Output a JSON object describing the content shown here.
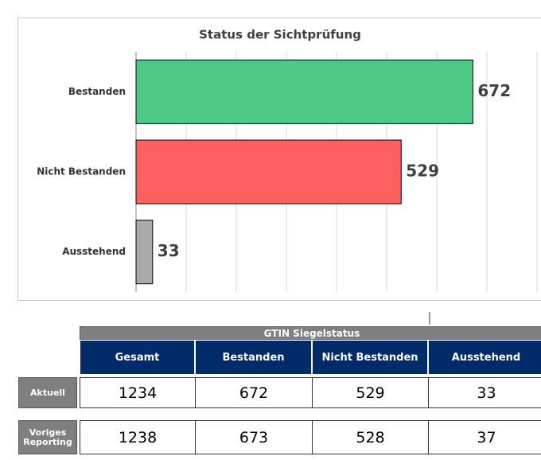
{
  "chart_data": {
    "type": "hbar",
    "title": "Status der Sichtprüfung",
    "categories": [
      "Bestanden",
      "Nicht Bestanden",
      "Ausstehend"
    ],
    "values": [
      672,
      529,
      33
    ],
    "colors": [
      "#4ec985",
      "#fe5f5f",
      "#aaaaaa"
    ],
    "xlim": [
      0,
      800
    ],
    "xticks": [
      0,
      100,
      200,
      300,
      400,
      500,
      600,
      700,
      800
    ],
    "grid": true
  },
  "table": {
    "title": "GTIN Siegelstatus",
    "columns": [
      "Gesamt",
      "Bestanden",
      "Nicht Bestanden",
      "Ausstehend"
    ],
    "rows": [
      {
        "label": "Aktuell",
        "cells": [
          1234,
          672,
          529,
          33
        ]
      },
      {
        "label": "Voriges Reporting",
        "cells": [
          1238,
          673,
          528,
          37
        ]
      }
    ]
  }
}
